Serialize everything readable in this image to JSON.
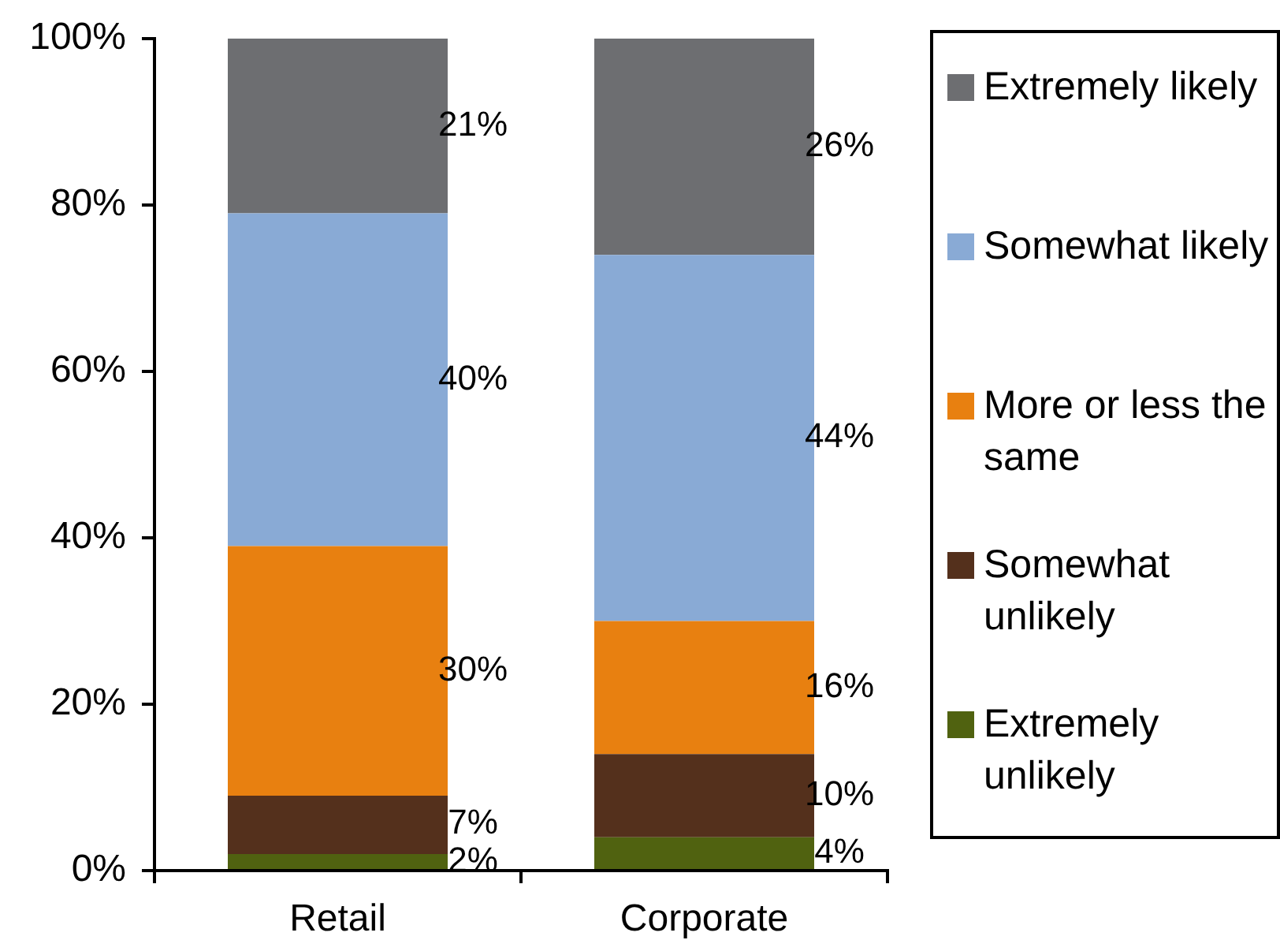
{
  "chart_data": {
    "type": "bar",
    "stacked": true,
    "categories": [
      "Retail",
      "Corporate"
    ],
    "series": [
      {
        "name": "Extremely unlikely",
        "color": "#506210",
        "values": [
          2,
          4
        ],
        "value_labels": [
          "2%",
          "4%"
        ]
      },
      {
        "name": "Somewhat unlikely",
        "color": "#54301c",
        "values": [
          7,
          10
        ],
        "value_labels": [
          "7%",
          "10%"
        ]
      },
      {
        "name": "More or less the same",
        "color": "#e88010",
        "values": [
          30,
          16
        ],
        "value_labels": [
          "30%",
          "16%"
        ]
      },
      {
        "name": "Somewhat likely",
        "color": "#89aad5",
        "values": [
          40,
          44
        ],
        "value_labels": [
          "40%",
          "44%"
        ]
      },
      {
        "name": "Extremely likely",
        "color": "#6d6e71",
        "values": [
          21,
          26
        ],
        "value_labels": [
          "21%",
          "26%"
        ]
      }
    ],
    "ylim": [
      0,
      100
    ],
    "yticks": [
      {
        "value": 0,
        "label": "0%"
      },
      {
        "value": 20,
        "label": "20%"
      },
      {
        "value": 40,
        "label": "40%"
      },
      {
        "value": 60,
        "label": "60%"
      },
      {
        "value": 80,
        "label": "80%"
      },
      {
        "value": 100,
        "label": "100%"
      }
    ],
    "legend": "right"
  }
}
